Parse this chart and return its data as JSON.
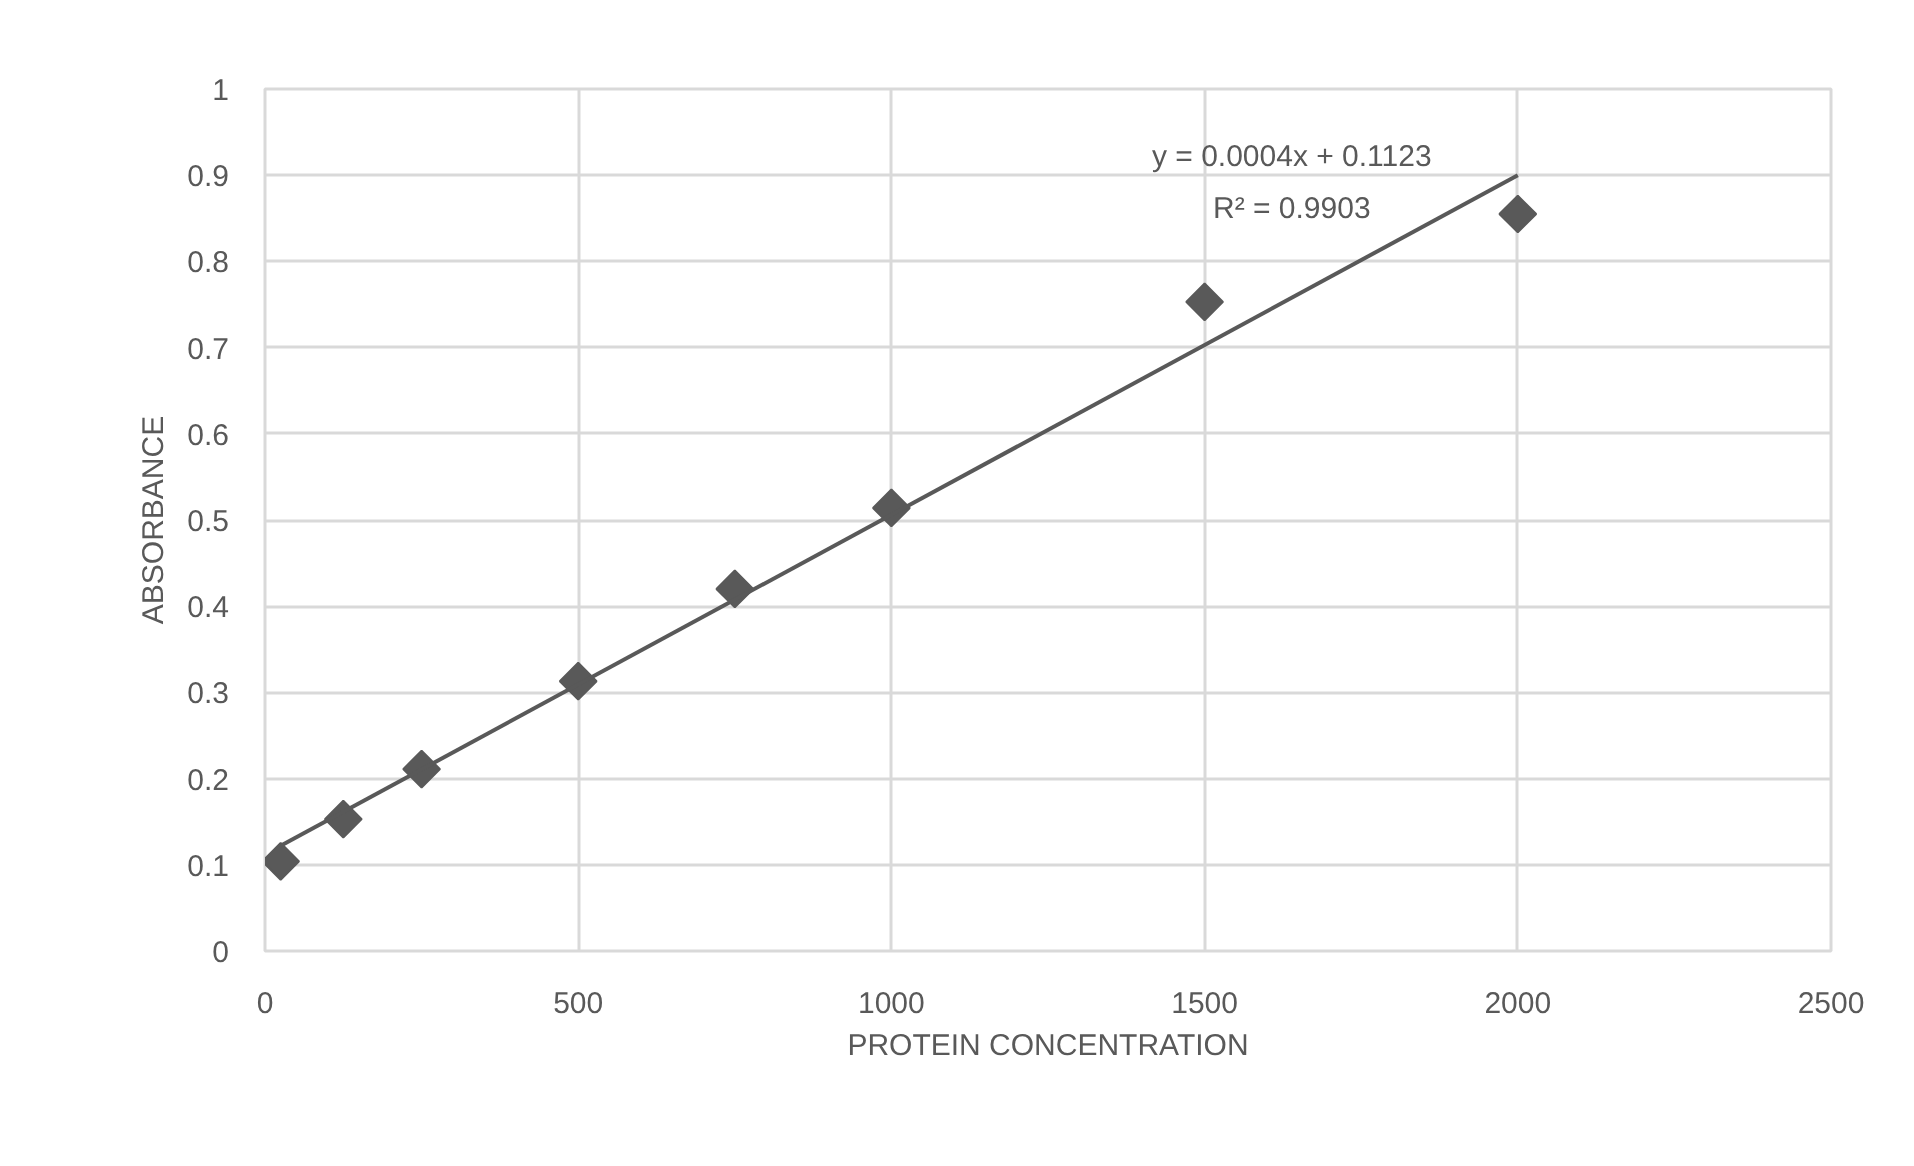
{
  "chart_data": {
    "type": "scatter",
    "xlabel": "PROTEIN CONCENTRATION",
    "ylabel": "ABSORBANCE",
    "annotations": [
      "y = 0.0004x + 0.1123",
      "R² = 0.9903"
    ],
    "xlim": [
      0,
      2500
    ],
    "ylim": [
      0,
      1
    ],
    "xticks": [
      0,
      500,
      1000,
      1500,
      2000,
      2500
    ],
    "yticks": [
      0,
      0.1,
      0.2,
      0.3,
      0.4,
      0.5,
      0.6,
      0.7,
      0.8,
      0.9,
      1
    ],
    "grid": true,
    "marker": "diamond",
    "series": [
      {
        "color": "#595959",
        "x": [
          25,
          125,
          250,
          500,
          750,
          1000,
          1500,
          2000
        ],
        "values": [
          0.104,
          0.153,
          0.211,
          0.313,
          0.42,
          0.514,
          0.753,
          0.855
        ]
      },
      {
        "type": "line",
        "color": "#595959",
        "marker": "none",
        "x": [
          25,
          2000
        ],
        "values": [
          0.122,
          0.9
        ]
      }
    ]
  }
}
